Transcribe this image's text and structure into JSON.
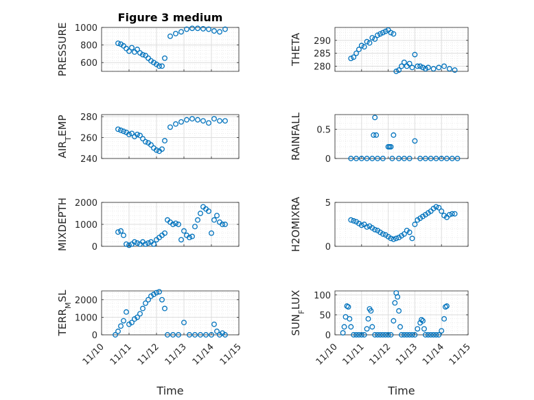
{
  "figure": {
    "title": "Figure 3 medium",
    "time_label": "Time",
    "marker_color": "#0072BD",
    "x_ticks": [
      "11/10",
      "11/11",
      "11/12",
      "11/13",
      "11/14",
      "11/15"
    ]
  },
  "chart_data": [
    {
      "type": "scatter",
      "ylabel": "PRESSURE",
      "title": "Figure 3 medium",
      "xlim": [
        10,
        15
      ],
      "ylim": [
        500,
        1000
      ],
      "yticks": [
        600,
        800,
        1000
      ],
      "x": [
        10.6,
        10.7,
        10.8,
        10.9,
        11.0,
        11.1,
        11.2,
        11.3,
        11.4,
        11.5,
        11.6,
        11.7,
        11.8,
        11.9,
        12.0,
        12.1,
        12.2,
        12.3,
        12.5,
        12.7,
        12.9,
        13.1,
        13.3,
        13.5,
        13.7,
        13.9,
        14.1,
        14.3,
        14.5
      ],
      "y": [
        820,
        810,
        790,
        760,
        730,
        770,
        720,
        750,
        710,
        690,
        680,
        650,
        620,
        600,
        580,
        560,
        560,
        650,
        900,
        930,
        950,
        980,
        990,
        990,
        985,
        980,
        960,
        950,
        980
      ]
    },
    {
      "type": "scatter",
      "ylabel": "THETA",
      "xlim": [
        10,
        15
      ],
      "ylim": [
        278,
        295
      ],
      "yticks": [
        280,
        285,
        290
      ],
      "x": [
        10.6,
        10.7,
        10.8,
        10.9,
        11.0,
        11.1,
        11.2,
        11.3,
        11.4,
        11.5,
        11.6,
        11.7,
        11.8,
        11.9,
        12.0,
        12.1,
        12.2,
        12.3,
        12.4,
        12.5,
        12.6,
        12.7,
        12.8,
        12.9,
        13.0,
        13.1,
        13.2,
        13.3,
        13.4,
        13.5,
        13.7,
        13.9,
        14.1,
        14.3,
        14.5
      ],
      "y": [
        283,
        283.5,
        285,
        286.5,
        288,
        287.5,
        289.5,
        289,
        291,
        290.5,
        292,
        292.5,
        293,
        293.5,
        294,
        293,
        292.5,
        278,
        278.5,
        280,
        281.5,
        280,
        281,
        279.5,
        284.5,
        280,
        280,
        279.5,
        279,
        279.5,
        279,
        279.5,
        280,
        279,
        278.5
      ]
    },
    {
      "type": "scatter",
      "ylabel": "AIR_TEMP",
      "xlim": [
        10,
        15
      ],
      "ylim": [
        240,
        282
      ],
      "yticks": [
        240,
        260,
        280
      ],
      "x": [
        10.6,
        10.7,
        10.8,
        10.9,
        11.0,
        11.1,
        11.2,
        11.3,
        11.4,
        11.5,
        11.6,
        11.7,
        11.8,
        11.9,
        12.0,
        12.1,
        12.2,
        12.3,
        12.5,
        12.7,
        12.9,
        13.1,
        13.3,
        13.5,
        13.7,
        13.9,
        14.1,
        14.3,
        14.5
      ],
      "y": [
        268,
        267,
        266,
        265,
        263,
        264,
        261,
        263,
        262,
        259,
        256,
        255,
        253,
        250,
        248,
        247,
        249,
        257,
        270,
        273,
        275,
        277,
        278,
        277,
        276,
        274,
        278,
        276,
        276
      ]
    },
    {
      "type": "scatter",
      "ylabel": "RAINFALL",
      "xlim": [
        10,
        15
      ],
      "ylim": [
        0,
        0.75
      ],
      "yticks": [
        0,
        0.5
      ],
      "x": [
        10.6,
        10.8,
        11.0,
        11.2,
        11.4,
        11.45,
        11.5,
        11.55,
        11.6,
        11.8,
        12.0,
        12.05,
        12.1,
        12.15,
        12.2,
        12.4,
        12.6,
        12.8,
        13.0,
        13.2,
        13.4,
        13.6,
        13.8,
        14.0,
        14.2,
        14.4,
        14.6
      ],
      "y": [
        0,
        0,
        0,
        0,
        0,
        0.4,
        0.7,
        0.4,
        0,
        0,
        0.2,
        0.2,
        0.2,
        0,
        0.4,
        0,
        0,
        0,
        0.3,
        0,
        0,
        0,
        0,
        0,
        0,
        0,
        0
      ]
    },
    {
      "type": "scatter",
      "ylabel": "MIXDEPTH",
      "xlim": [
        10,
        15
      ],
      "ylim": [
        0,
        2000
      ],
      "yticks": [
        0,
        1000,
        2000
      ],
      "x": [
        10.6,
        10.7,
        10.8,
        10.9,
        11.0,
        11.1,
        11.2,
        11.3,
        11.4,
        11.5,
        11.6,
        11.7,
        11.8,
        11.9,
        12.0,
        12.1,
        12.2,
        12.3,
        12.4,
        12.5,
        12.6,
        12.7,
        12.8,
        12.9,
        13.0,
        13.1,
        13.2,
        13.3,
        13.4,
        13.5,
        13.6,
        13.7,
        13.8,
        13.9,
        14.0,
        14.1,
        14.2,
        14.3,
        14.4,
        14.5
      ],
      "y": [
        650,
        700,
        500,
        100,
        50,
        100,
        200,
        150,
        100,
        200,
        100,
        150,
        200,
        100,
        300,
        400,
        500,
        600,
        1200,
        1100,
        1000,
        1050,
        1000,
        300,
        700,
        500,
        400,
        450,
        900,
        1200,
        1500,
        1800,
        1700,
        1600,
        600,
        1200,
        1400,
        1100,
        1000,
        1000
      ]
    },
    {
      "type": "scatter",
      "ylabel": "H2OMIXRA",
      "xlim": [
        10,
        15
      ],
      "ylim": [
        0,
        5
      ],
      "yticks": [
        0,
        5
      ],
      "x": [
        10.6,
        10.7,
        10.8,
        10.9,
        11.0,
        11.1,
        11.2,
        11.3,
        11.4,
        11.5,
        11.6,
        11.7,
        11.8,
        11.9,
        12.0,
        12.1,
        12.2,
        12.3,
        12.4,
        12.5,
        12.6,
        12.7,
        12.8,
        12.9,
        13.0,
        13.1,
        13.2,
        13.3,
        13.4,
        13.5,
        13.6,
        13.7,
        13.8,
        13.9,
        14.0,
        14.1,
        14.2,
        14.3,
        14.4,
        14.5
      ],
      "y": [
        3.0,
        2.9,
        2.8,
        2.6,
        2.4,
        2.5,
        2.2,
        2.3,
        2.1,
        1.9,
        1.8,
        1.6,
        1.4,
        1.3,
        1.1,
        0.9,
        0.8,
        0.9,
        1.0,
        1.2,
        1.4,
        1.8,
        1.6,
        0.9,
        2.5,
        3.0,
        3.2,
        3.4,
        3.6,
        3.8,
        4.0,
        4.3,
        4.5,
        4.4,
        4.0,
        3.5,
        3.3,
        3.6,
        3.7,
        3.7
      ]
    },
    {
      "type": "scatter",
      "ylabel": "TERR_MSL",
      "xlim": [
        10,
        15
      ],
      "ylim": [
        0,
        2500
      ],
      "yticks": [
        0,
        1000,
        2000
      ],
      "x": [
        10.5,
        10.6,
        10.7,
        10.8,
        10.9,
        11.0,
        11.1,
        11.2,
        11.3,
        11.4,
        11.5,
        11.6,
        11.7,
        11.8,
        11.9,
        12.0,
        12.1,
        12.2,
        12.3,
        12.4,
        12.6,
        12.8,
        13.0,
        13.2,
        13.4,
        13.6,
        13.8,
        14.0,
        14.1,
        14.2,
        14.3,
        14.4,
        14.5
      ],
      "y": [
        0,
        200,
        500,
        800,
        1300,
        600,
        700,
        900,
        1000,
        1200,
        1500,
        1800,
        2000,
        2200,
        2300,
        2400,
        2450,
        2000,
        1500,
        0,
        0,
        0,
        700,
        0,
        0,
        0,
        0,
        0,
        600,
        200,
        0,
        100,
        0
      ]
    },
    {
      "type": "scatter",
      "ylabel": "SUN_FLUX",
      "xlim": [
        10,
        15
      ],
      "ylim": [
        0,
        110
      ],
      "yticks": [
        0,
        50,
        100
      ],
      "x": [
        10.3,
        10.35,
        10.4,
        10.45,
        10.5,
        10.55,
        10.6,
        10.7,
        10.8,
        10.9,
        11.0,
        11.1,
        11.2,
        11.25,
        11.3,
        11.35,
        11.4,
        11.5,
        11.6,
        11.7,
        11.8,
        11.9,
        12.0,
        12.1,
        12.2,
        12.25,
        12.3,
        12.35,
        12.4,
        12.45,
        12.5,
        12.6,
        12.7,
        12.8,
        12.9,
        13.0,
        13.1,
        13.2,
        13.25,
        13.3,
        13.35,
        13.4,
        13.5,
        13.6,
        13.7,
        13.8,
        13.9,
        14.0,
        14.1,
        14.15,
        14.2
      ],
      "y": [
        5,
        20,
        45,
        72,
        70,
        40,
        20,
        0,
        0,
        0,
        0,
        0,
        15,
        40,
        65,
        60,
        20,
        0,
        0,
        0,
        0,
        0,
        0,
        0,
        35,
        80,
        105,
        95,
        60,
        20,
        0,
        0,
        0,
        0,
        0,
        0,
        15,
        30,
        38,
        35,
        15,
        0,
        0,
        0,
        0,
        0,
        0,
        10,
        40,
        70,
        72
      ]
    }
  ]
}
